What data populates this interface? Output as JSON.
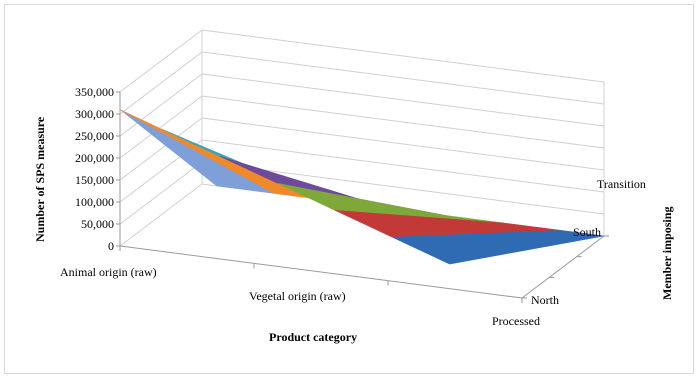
{
  "chart_data": {
    "type": "surface",
    "title": "",
    "xlabel": "Product category",
    "ylabel": "Number of SPS measure",
    "zlabel": "Member imposing",
    "categories": [
      "Animal origin (raw)",
      "Vegetal origin (raw)",
      "Processed"
    ],
    "depth_categories": [
      "North",
      "South",
      "Transition"
    ],
    "ylim": [
      0,
      350000
    ],
    "yticks": [
      "0",
      "50,000",
      "100,000",
      "150,000",
      "200,000",
      "250,000",
      "300,000",
      "350,000"
    ],
    "series": [
      {
        "name": "North",
        "values": [
          310000,
          0,
          0
        ]
      },
      {
        "name": "South",
        "values": [
          0,
          0,
          0
        ]
      },
      {
        "name": "Transition",
        "values": [
          0,
          0,
          0
        ]
      }
    ],
    "band_colors": [
      "#7f9fd8",
      "#f0892a",
      "#2fa8c2",
      "#6f4a9c",
      "#7fa83a",
      "#c23a38",
      "#2e6bb3"
    ],
    "grid": true,
    "legend": "none"
  }
}
